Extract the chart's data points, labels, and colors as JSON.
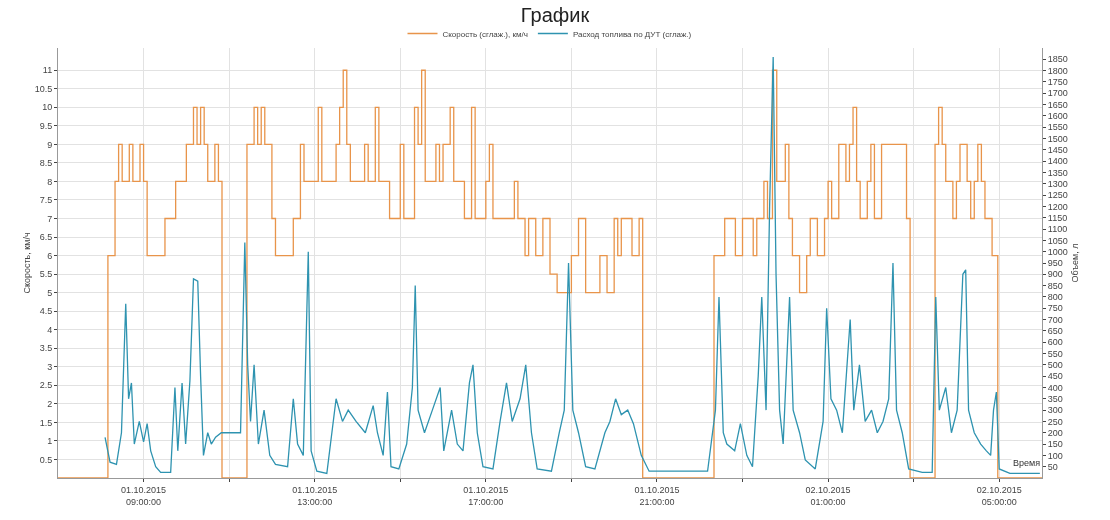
{
  "chart_data": {
    "type": "line",
    "title": "График",
    "xlabel": "Время",
    "ylabel": "Скорость, км/ч",
    "y2label": "Объем, л",
    "legend": "top",
    "grid": true,
    "marker": "none",
    "line_style": "solid",
    "xlim": [
      "2015-10-01T07:00",
      "2015-10-02T06:00"
    ],
    "xticks": [
      {
        "value": "2015-10-01T09:00",
        "label": "01.10.2015 09:00:00"
      },
      {
        "value": "2015-10-01T11:00",
        "label": null
      },
      {
        "value": "2015-10-01T13:00",
        "label": "01.10.2015 13:00:00"
      },
      {
        "value": "2015-10-01T15:00",
        "label": null
      },
      {
        "value": "2015-10-01T17:00",
        "label": "01.10.2015 17:00:00"
      },
      {
        "value": "2015-10-01T19:00",
        "label": null
      },
      {
        "value": "2015-10-01T21:00",
        "label": "01.10.2015 21:00:00"
      },
      {
        "value": "2015-10-01T23:00",
        "label": null
      },
      {
        "value": "2015-10-02T01:00",
        "label": "02.10.2015 01:00:00"
      },
      {
        "value": "2015-10-02T03:00",
        "label": null
      },
      {
        "value": "2015-10-02T05:00",
        "label": "02.10.2015 05:00:00"
      }
    ],
    "ylim": [
      0,
      11.6
    ],
    "yticks": [
      0.5,
      1,
      1.5,
      2,
      2.5,
      3,
      3.5,
      4,
      4.5,
      5,
      5.5,
      6,
      6.5,
      7,
      7.5,
      8,
      8.5,
      9,
      9.5,
      10,
      10.5,
      11
    ],
    "y2lim": [
      0,
      1900
    ],
    "y2ticks": [
      50,
      100,
      150,
      200,
      250,
      300,
      350,
      400,
      450,
      500,
      550,
      600,
      650,
      700,
      750,
      800,
      850,
      900,
      950,
      1000,
      1050,
      1100,
      1150,
      1200,
      1250,
      1300,
      1350,
      1400,
      1450,
      1500,
      1550,
      1600,
      1650,
      1700,
      1750,
      1800,
      1850
    ],
    "series": [
      {
        "name": "Скорость (сглаж.), км/ч",
        "type": "step",
        "color": "#e8944a",
        "x": [
          "2015-10-01T07:00",
          "2015-10-01T08:10",
          "2015-10-01T08:20",
          "2015-10-01T08:25",
          "2015-10-01T08:30",
          "2015-10-01T08:40",
          "2015-10-01T08:45",
          "2015-10-01T08:55",
          "2015-10-01T09:00",
          "2015-10-01T09:05",
          "2015-10-01T09:30",
          "2015-10-01T09:45",
          "2015-10-01T10:00",
          "2015-10-01T10:10",
          "2015-10-01T10:15",
          "2015-10-01T10:20",
          "2015-10-01T10:25",
          "2015-10-01T10:30",
          "2015-10-01T10:40",
          "2015-10-01T10:45",
          "2015-10-01T10:50",
          "2015-10-01T11:25",
          "2015-10-01T11:35",
          "2015-10-01T11:40",
          "2015-10-01T11:45",
          "2015-10-01T11:50",
          "2015-10-01T12:00",
          "2015-10-01T12:05",
          "2015-10-01T12:30",
          "2015-10-01T12:40",
          "2015-10-01T12:45",
          "2015-10-01T13:05",
          "2015-10-01T13:10",
          "2015-10-01T13:30",
          "2015-10-01T13:35",
          "2015-10-01T13:40",
          "2015-10-01T13:45",
          "2015-10-01T13:50",
          "2015-10-01T14:10",
          "2015-10-01T14:15",
          "2015-10-01T14:25",
          "2015-10-01T14:30",
          "2015-10-01T14:45",
          "2015-10-01T15:00",
          "2015-10-01T15:05",
          "2015-10-01T15:20",
          "2015-10-01T15:25",
          "2015-10-01T15:30",
          "2015-10-01T15:35",
          "2015-10-01T15:50",
          "2015-10-01T15:55",
          "2015-10-01T16:00",
          "2015-10-01T16:10",
          "2015-10-01T16:15",
          "2015-10-01T16:30",
          "2015-10-01T16:40",
          "2015-10-01T16:45",
          "2015-10-01T17:00",
          "2015-10-01T17:05",
          "2015-10-01T17:10",
          "2015-10-01T17:40",
          "2015-10-01T17:45",
          "2015-10-01T17:55",
          "2015-10-01T18:00",
          "2015-10-01T18:10",
          "2015-10-01T18:20",
          "2015-10-01T18:30",
          "2015-10-01T18:40",
          "2015-10-01T19:00",
          "2015-10-01T19:10",
          "2015-10-01T19:20",
          "2015-10-01T19:40",
          "2015-10-01T19:50",
          "2015-10-01T20:00",
          "2015-10-01T20:05",
          "2015-10-01T20:10",
          "2015-10-01T20:25",
          "2015-10-01T20:35",
          "2015-10-01T20:40",
          "2015-10-01T22:20",
          "2015-10-01T22:35",
          "2015-10-01T22:50",
          "2015-10-01T23:00",
          "2015-10-01T23:15",
          "2015-10-01T23:20",
          "2015-10-01T23:30",
          "2015-10-01T23:35",
          "2015-10-01T23:42",
          "2015-10-01T23:48",
          "2015-10-02T00:00",
          "2015-10-02T00:05",
          "2015-10-02T00:10",
          "2015-10-02T00:20",
          "2015-10-02T00:30",
          "2015-10-02T00:35",
          "2015-10-02T00:45",
          "2015-10-02T00:55",
          "2015-10-02T01:00",
          "2015-10-02T01:05",
          "2015-10-02T01:15",
          "2015-10-02T01:25",
          "2015-10-02T01:30",
          "2015-10-02T01:35",
          "2015-10-02T01:40",
          "2015-10-02T01:45",
          "2015-10-02T01:55",
          "2015-10-02T02:00",
          "2015-10-02T02:05",
          "2015-10-02T02:15",
          "2015-10-02T02:50",
          "2015-10-02T02:55",
          "2015-10-02T03:30",
          "2015-10-02T03:35",
          "2015-10-02T03:40",
          "2015-10-02T03:45",
          "2015-10-02T03:55",
          "2015-10-02T04:00",
          "2015-10-02T04:05",
          "2015-10-02T04:15",
          "2015-10-02T04:20",
          "2015-10-02T04:25",
          "2015-10-02T04:30",
          "2015-10-02T04:35",
          "2015-10-02T04:40",
          "2015-10-02T04:50",
          "2015-10-02T04:58",
          "2015-10-02T06:00"
        ],
        "values": [
          0,
          6,
          8,
          9,
          8,
          9,
          8,
          9,
          8,
          6,
          7,
          8,
          9,
          10,
          9,
          10,
          9,
          8,
          9,
          8,
          0,
          9,
          10,
          9,
          10,
          9,
          7,
          6,
          7,
          9,
          8,
          10,
          8,
          9,
          10,
          11,
          9,
          8,
          9,
          8,
          10,
          8,
          7,
          9,
          7,
          10,
          9,
          11,
          8,
          9,
          8,
          9,
          10,
          8,
          7,
          10,
          7,
          8,
          9,
          7,
          8,
          7,
          6,
          7,
          6,
          7,
          5.5,
          5,
          6,
          7,
          5,
          6,
          5,
          7,
          6,
          7,
          6,
          7,
          0,
          6,
          7,
          6,
          7,
          6,
          7,
          8,
          7,
          11,
          8,
          9,
          7,
          6,
          5,
          6,
          7,
          6,
          7,
          8,
          7,
          9,
          8,
          9,
          10,
          8,
          7,
          8,
          9,
          7,
          9,
          7,
          0,
          9,
          10,
          9,
          8,
          7,
          8,
          9,
          8,
          7,
          8,
          9,
          8,
          7,
          6,
          0,
          0
        ]
      },
      {
        "name": "Расход топлива по ДУТ (сглаж.)",
        "axis": "y2",
        "color": "#2e93b0",
        "x": [
          "2015-10-01T08:06",
          "2015-10-01T08:13",
          "2015-10-01T08:22",
          "2015-10-01T08:29",
          "2015-10-01T08:35",
          "2015-10-01T08:39",
          "2015-10-01T08:43",
          "2015-10-01T08:47",
          "2015-10-01T08:54",
          "2015-10-01T09:00",
          "2015-10-01T09:05",
          "2015-10-01T09:10",
          "2015-10-01T09:17",
          "2015-10-01T09:24",
          "2015-10-01T09:38",
          "2015-10-01T09:44",
          "2015-10-01T09:48",
          "2015-10-01T09:54",
          "2015-10-01T09:59",
          "2015-10-01T10:05",
          "2015-10-01T10:10",
          "2015-10-01T10:16",
          "2015-10-01T10:20",
          "2015-10-01T10:24",
          "2015-10-01T10:30",
          "2015-10-01T10:35",
          "2015-10-01T10:41",
          "2015-10-01T10:49",
          "2015-10-01T11:00",
          "2015-10-01T11:16",
          "2015-10-01T11:22",
          "2015-10-01T11:26",
          "2015-10-01T11:30",
          "2015-10-01T11:35",
          "2015-10-01T11:41",
          "2015-10-01T11:49",
          "2015-10-01T11:57",
          "2015-10-01T12:05",
          "2015-10-01T12:22",
          "2015-10-01T12:30",
          "2015-10-01T12:36",
          "2015-10-01T12:44",
          "2015-10-01T12:51",
          "2015-10-01T12:55",
          "2015-10-01T13:03",
          "2015-10-01T13:17",
          "2015-10-01T13:30",
          "2015-10-01T13:39",
          "2015-10-01T13:47",
          "2015-10-01T13:58",
          "2015-10-01T14:11",
          "2015-10-01T14:22",
          "2015-10-01T14:28",
          "2015-10-01T14:36",
          "2015-10-01T14:42",
          "2015-10-01T14:47",
          "2015-10-01T14:58",
          "2015-10-01T15:09",
          "2015-10-01T15:17",
          "2015-10-01T15:21",
          "2015-10-01T15:25",
          "2015-10-01T15:34",
          "2015-10-01T15:45",
          "2015-10-01T15:56",
          "2015-10-01T16:01",
          "2015-10-01T16:12",
          "2015-10-01T16:20",
          "2015-10-01T16:28",
          "2015-10-01T16:37",
          "2015-10-01T16:42",
          "2015-10-01T16:48",
          "2015-10-01T16:56",
          "2015-10-01T17:10",
          "2015-10-01T17:20",
          "2015-10-01T17:29",
          "2015-10-01T17:37",
          "2015-10-01T17:48",
          "2015-10-01T17:56",
          "2015-10-01T18:04",
          "2015-10-01T18:12",
          "2015-10-01T18:32",
          "2015-10-01T18:43",
          "2015-10-01T18:50",
          "2015-10-01T18:56",
          "2015-10-01T19:02",
          "2015-10-01T19:10",
          "2015-10-01T19:20",
          "2015-10-01T19:33",
          "2015-10-01T19:47",
          "2015-10-01T19:54",
          "2015-10-01T20:02",
          "2015-10-01T20:10",
          "2015-10-01T20:19",
          "2015-10-01T20:27",
          "2015-10-01T20:38",
          "2015-10-01T20:49",
          "2015-10-01T21:16",
          "2015-10-01T22:11",
          "2015-10-01T22:22",
          "2015-10-01T22:27",
          "2015-10-01T22:33",
          "2015-10-01T22:38",
          "2015-10-01T22:49",
          "2015-10-01T22:57",
          "2015-10-01T23:06",
          "2015-10-01T23:14",
          "2015-10-01T23:22",
          "2015-10-01T23:27",
          "2015-10-01T23:33",
          "2015-10-01T23:38",
          "2015-10-01T23:43",
          "2015-10-01T23:47",
          "2015-10-01T23:52",
          "2015-10-01T23:57",
          "2015-10-02T00:06",
          "2015-10-02T00:11",
          "2015-10-02T00:20",
          "2015-10-02T00:28",
          "2015-10-02T00:42",
          "2015-10-02T00:53",
          "2015-10-02T00:58",
          "2015-10-02T01:04",
          "2015-10-02T01:12",
          "2015-10-02T01:20",
          "2015-10-02T01:31",
          "2015-10-02T01:36",
          "2015-10-02T01:44",
          "2015-10-02T01:52",
          "2015-10-02T02:01",
          "2015-10-02T02:09",
          "2015-10-02T02:17",
          "2015-10-02T02:25",
          "2015-10-02T02:31",
          "2015-10-02T02:36",
          "2015-10-02T02:44",
          "2015-10-02T02:53",
          "2015-10-02T03:12",
          "2015-10-02T03:26",
          "2015-10-02T03:31",
          "2015-10-02T03:36",
          "2015-10-02T03:45",
          "2015-10-02T03:53",
          "2015-10-02T04:01",
          "2015-10-02T04:09",
          "2015-10-02T04:13",
          "2015-10-02T04:17",
          "2015-10-02T04:25",
          "2015-10-02T04:34",
          "2015-10-02T04:42",
          "2015-10-02T04:48",
          "2015-10-02T04:52",
          "2015-10-02T04:56",
          "2015-10-02T05:00",
          "2015-10-02T05:15",
          "2015-10-02T05:57"
        ],
        "values": [
          180,
          70,
          60,
          200,
          770,
          350,
          420,
          150,
          250,
          160,
          240,
          120,
          50,
          25,
          25,
          400,
          120,
          420,
          150,
          430,
          880,
          870,
          450,
          100,
          200,
          150,
          180,
          200,
          200,
          200,
          1040,
          500,
          250,
          500,
          150,
          300,
          100,
          60,
          50,
          350,
          150,
          100,
          1000,
          120,
          30,
          20,
          350,
          250,
          300,
          250,
          200,
          320,
          200,
          100,
          380,
          50,
          40,
          150,
          400,
          850,
          300,
          200,
          300,
          400,
          120,
          300,
          150,
          120,
          420,
          500,
          200,
          50,
          40,
          250,
          420,
          250,
          350,
          500,
          200,
          40,
          30,
          200,
          300,
          950,
          300,
          200,
          50,
          40,
          200,
          250,
          350,
          280,
          300,
          240,
          100,
          30,
          30,
          30,
          300,
          800,
          200,
          150,
          120,
          240,
          100,
          50,
          450,
          800,
          300,
          1200,
          1860,
          900,
          300,
          150,
          800,
          300,
          200,
          80,
          40,
          250,
          750,
          350,
          300,
          200,
          700,
          300,
          500,
          250,
          300,
          200,
          250,
          350,
          950,
          300,
          200,
          40,
          25,
          25,
          800,
          300,
          400,
          200,
          300,
          900,
          920,
          300,
          200,
          150,
          120,
          100,
          300,
          380,
          40,
          20,
          20
        ]
      }
    ]
  }
}
